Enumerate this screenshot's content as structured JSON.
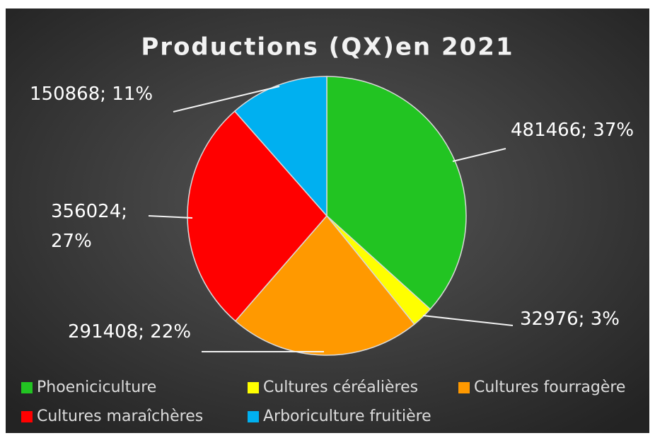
{
  "chart_data": {
    "type": "pie",
    "title": "Productions (QX)en 2021",
    "categories": [
      "Phoeniciculture",
      "Cultures céréalières",
      "Cultures fourragère",
      "Cultures maraîchères",
      "Arboriculture fruitière"
    ],
    "values": [
      481466,
      32976,
      291408,
      356024,
      150868
    ],
    "value_labels": [
      "481466; 37%",
      "32976; 3%",
      "291408; 22%",
      "356024; 27%",
      "150868; 11%"
    ],
    "colors": [
      "#22c422",
      "#ffff00",
      "#ff9900",
      "#ff0000",
      "#00b0f0"
    ],
    "legend": "bottom"
  }
}
